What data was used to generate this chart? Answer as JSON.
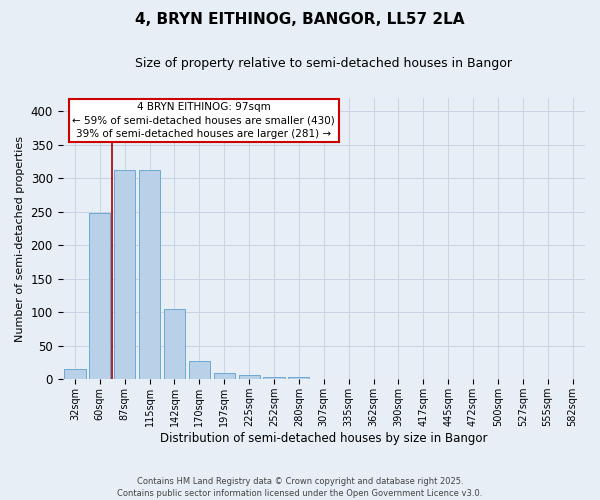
{
  "title": "4, BRYN EITHINOG, BANGOR, LL57 2LA",
  "subtitle": "Size of property relative to semi-detached houses in Bangor",
  "xlabel": "Distribution of semi-detached houses by size in Bangor",
  "ylabel": "Number of semi-detached properties",
  "categories": [
    "32sqm",
    "60sqm",
    "87sqm",
    "115sqm",
    "142sqm",
    "170sqm",
    "197sqm",
    "225sqm",
    "252sqm",
    "280sqm",
    "307sqm",
    "335sqm",
    "362sqm",
    "390sqm",
    "417sqm",
    "445sqm",
    "472sqm",
    "500sqm",
    "527sqm",
    "555sqm",
    "582sqm"
  ],
  "values": [
    15,
    249,
    312,
    312,
    105,
    28,
    9,
    6,
    4,
    4,
    0,
    0,
    0,
    0,
    1,
    0,
    0,
    0,
    0,
    0,
    1
  ],
  "bar_color": "#b8d0e8",
  "bar_edge_color": "#6aaad4",
  "red_line_x": 1.5,
  "annotation_text": "4 BRYN EITHINOG: 97sqm\n← 59% of semi-detached houses are smaller (430)\n39% of semi-detached houses are larger (281) →",
  "annotation_box_color": "#ffffff",
  "annotation_box_edge_color": "#cc0000",
  "grid_color": "#c8d4e4",
  "background_color": "#e8eef6",
  "ylim": [
    0,
    420
  ],
  "yticks": [
    0,
    50,
    100,
    150,
    200,
    250,
    300,
    350,
    400
  ],
  "footer_line1": "Contains HM Land Registry data © Crown copyright and database right 2025.",
  "footer_line2": "Contains public sector information licensed under the Open Government Licence v3.0."
}
